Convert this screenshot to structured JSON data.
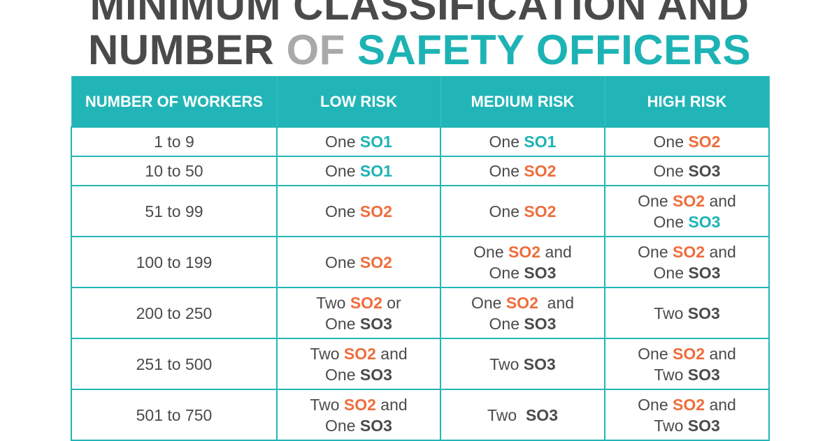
{
  "title": {
    "line1": "MINIMUM CLASSIFICATION AND",
    "line2_part1": "NUMBER",
    "line2_part2": "OF",
    "line2_part3": "SAFETY OFFICERS"
  },
  "colors": {
    "teal": "#1db3b5",
    "orange": "#ee6d3c",
    "dark": "#4b4b4b",
    "grey": "#a9a9a9",
    "header_bg": "#22b5b7"
  },
  "table": {
    "headers": [
      "NUMBER OF WORKERS",
      "LOW RISK",
      "MEDIUM RISK",
      "HIGH RISK"
    ],
    "rows": [
      {
        "workers": "1 to 9",
        "cells": [
          [
            {
              "t": "One ",
              "c": "plain"
            },
            {
              "t": "SO1",
              "c": "teal"
            }
          ],
          [
            {
              "t": "One ",
              "c": "plain"
            },
            {
              "t": "SO1",
              "c": "teal"
            }
          ],
          [
            {
              "t": "One ",
              "c": "plain"
            },
            {
              "t": "SO2",
              "c": "orange"
            }
          ]
        ]
      },
      {
        "workers": "10 to 50",
        "cells": [
          [
            {
              "t": "One ",
              "c": "plain"
            },
            {
              "t": "SO1",
              "c": "teal"
            }
          ],
          [
            {
              "t": "One ",
              "c": "plain"
            },
            {
              "t": "SO2",
              "c": "orange"
            }
          ],
          [
            {
              "t": "One ",
              "c": "plain"
            },
            {
              "t": "SO3",
              "c": "dark"
            }
          ]
        ]
      },
      {
        "workers": "51 to 99",
        "cells": [
          [
            {
              "t": "One ",
              "c": "plain"
            },
            {
              "t": "SO2",
              "c": "orange"
            }
          ],
          [
            {
              "t": "One ",
              "c": "plain"
            },
            {
              "t": "SO2",
              "c": "orange"
            }
          ],
          [
            {
              "t": "One ",
              "c": "plain"
            },
            {
              "t": "SO2",
              "c": "orange"
            },
            {
              "t": " and",
              "c": "plain"
            },
            {
              "t": "\n",
              "c": "br"
            },
            {
              "t": "One ",
              "c": "plain"
            },
            {
              "t": "SO3",
              "c": "teal"
            }
          ]
        ]
      },
      {
        "workers": "100 to 199",
        "cells": [
          [
            {
              "t": "One ",
              "c": "plain"
            },
            {
              "t": "SO2",
              "c": "orange"
            }
          ],
          [
            {
              "t": "One ",
              "c": "plain"
            },
            {
              "t": "SO2",
              "c": "orange"
            },
            {
              "t": " and",
              "c": "plain"
            },
            {
              "t": "\n",
              "c": "br"
            },
            {
              "t": "One ",
              "c": "plain"
            },
            {
              "t": "SO3",
              "c": "dark"
            }
          ],
          [
            {
              "t": "One ",
              "c": "plain"
            },
            {
              "t": "SO2",
              "c": "orange"
            },
            {
              "t": " and",
              "c": "plain"
            },
            {
              "t": "\n",
              "c": "br"
            },
            {
              "t": "One ",
              "c": "plain"
            },
            {
              "t": "SO3",
              "c": "dark"
            }
          ]
        ]
      },
      {
        "workers": "200 to 250",
        "cells": [
          [
            {
              "t": "Two ",
              "c": "plain"
            },
            {
              "t": "SO2",
              "c": "orange"
            },
            {
              "t": " or",
              "c": "plain"
            },
            {
              "t": "\n",
              "c": "br"
            },
            {
              "t": "One ",
              "c": "plain"
            },
            {
              "t": "SO3",
              "c": "dark"
            }
          ],
          [
            {
              "t": "One ",
              "c": "plain"
            },
            {
              "t": "SO2",
              "c": "orange"
            },
            {
              "t": "  and",
              "c": "plain"
            },
            {
              "t": "\n",
              "c": "br"
            },
            {
              "t": "One ",
              "c": "plain"
            },
            {
              "t": "SO3",
              "c": "dark"
            }
          ],
          [
            {
              "t": "Two ",
              "c": "plain"
            },
            {
              "t": "SO3",
              "c": "dark"
            }
          ]
        ]
      },
      {
        "workers": "251 to 500",
        "cells": [
          [
            {
              "t": "Two ",
              "c": "plain"
            },
            {
              "t": "SO2",
              "c": "orange"
            },
            {
              "t": " and",
              "c": "plain"
            },
            {
              "t": "\n",
              "c": "br"
            },
            {
              "t": "One ",
              "c": "plain"
            },
            {
              "t": "SO3",
              "c": "dark"
            }
          ],
          [
            {
              "t": "Two ",
              "c": "plain"
            },
            {
              "t": "SO3",
              "c": "dark"
            }
          ],
          [
            {
              "t": "One ",
              "c": "plain"
            },
            {
              "t": "SO2",
              "c": "orange"
            },
            {
              "t": " and",
              "c": "plain"
            },
            {
              "t": "\n",
              "c": "br"
            },
            {
              "t": "Two ",
              "c": "plain"
            },
            {
              "t": "SO3",
              "c": "dark"
            }
          ]
        ]
      },
      {
        "workers": "501 to 750",
        "cells": [
          [
            {
              "t": "Two ",
              "c": "plain"
            },
            {
              "t": "SO2",
              "c": "orange"
            },
            {
              "t": " and",
              "c": "plain"
            },
            {
              "t": "\n",
              "c": "br"
            },
            {
              "t": "One ",
              "c": "plain"
            },
            {
              "t": "SO3",
              "c": "dark"
            }
          ],
          [
            {
              "t": "Two  ",
              "c": "plain"
            },
            {
              "t": "SO3",
              "c": "dark"
            }
          ],
          [
            {
              "t": "One ",
              "c": "plain"
            },
            {
              "t": "SO2",
              "c": "orange"
            },
            {
              "t": " and",
              "c": "plain"
            },
            {
              "t": "\n",
              "c": "br"
            },
            {
              "t": "Two ",
              "c": "plain"
            },
            {
              "t": "SO3",
              "c": "dark"
            }
          ]
        ]
      }
    ]
  }
}
